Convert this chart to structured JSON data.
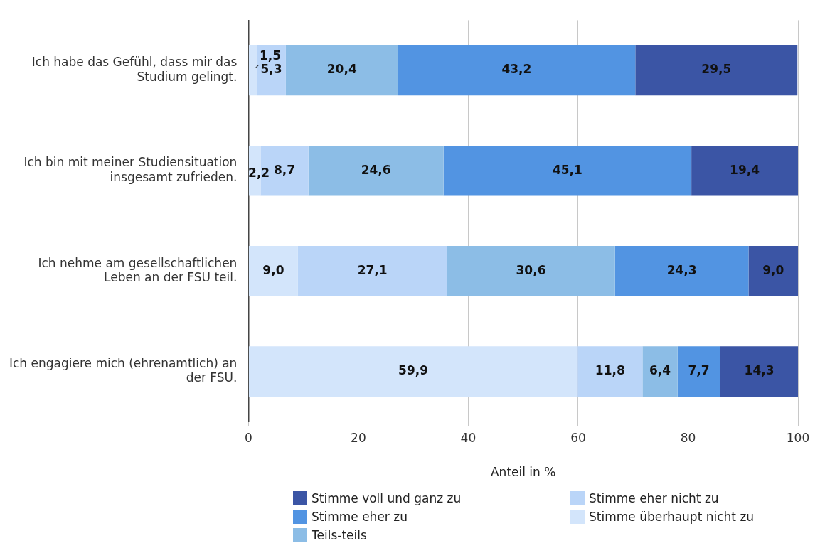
{
  "chart_data": {
    "type": "bar",
    "orientation": "horizontal",
    "stacked": true,
    "categories": [
      "Ich habe das Gefühl, dass mir das Studium gelingt.",
      "Ich bin mit meiner Studiensituation insgesamt zufrieden.",
      "Ich nehme am gesellschaftlichen Leben an der FSU teil.",
      "Ich engagiere mich (ehrenamtlich) an der FSU."
    ],
    "series": [
      {
        "name": "Stimme überhaupt nicht zu",
        "color": "#d3e5fb",
        "values": [
          1.5,
          2.2,
          9.0,
          59.9
        ],
        "value_labels": [
          "1,5",
          "2,2",
          "9,0",
          "59,9"
        ]
      },
      {
        "name": "Stimme eher nicht zu",
        "color": "#bad5f8",
        "values": [
          5.3,
          8.7,
          27.1,
          11.8
        ],
        "value_labels": [
          "5,3",
          "8,7",
          "27,1",
          "11,8"
        ]
      },
      {
        "name": "Teils-teils",
        "color": "#8cbde6",
        "values": [
          20.4,
          24.6,
          30.6,
          6.4
        ],
        "value_labels": [
          "20,4",
          "24,6",
          "30,6",
          "6,4"
        ]
      },
      {
        "name": "Stimme eher zu",
        "color": "#5294e2",
        "values": [
          43.2,
          45.1,
          24.3,
          7.7
        ],
        "value_labels": [
          "43,2",
          "45,1",
          "24,3",
          "7,7"
        ]
      },
      {
        "name": "Stimme voll und ganz zu",
        "color": "#3b55a5",
        "values": [
          29.5,
          19.4,
          9.0,
          14.3
        ],
        "value_labels": [
          "29,5",
          "19,4",
          "9,0",
          "14,3"
        ]
      }
    ],
    "xlim": [
      0,
      100
    ],
    "xticks": [
      0,
      20,
      40,
      60,
      80,
      100
    ],
    "xlabel": "Anteil in %",
    "grid": "x",
    "legend": "bottom"
  }
}
